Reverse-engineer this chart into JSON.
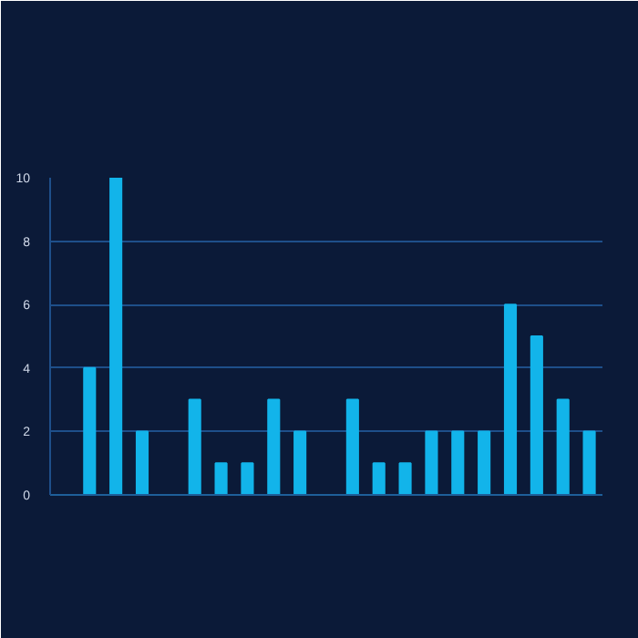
{
  "chart_data": {
    "type": "bar",
    "categories": [
      null,
      null,
      null,
      null,
      null,
      null,
      null,
      null,
      null,
      null,
      null,
      null,
      null,
      null,
      null,
      null,
      null,
      null,
      null,
      null,
      null
    ],
    "values": [
      0,
      4,
      10,
      2,
      0,
      3,
      1,
      1,
      3,
      2,
      0,
      3,
      1,
      1,
      2,
      2,
      2,
      6,
      5,
      3,
      2
    ],
    "color": "#12b4ea",
    "ylim": [
      0,
      10
    ],
    "yticks": [
      0,
      2,
      4,
      6,
      8,
      10
    ],
    "grid": "y"
  }
}
